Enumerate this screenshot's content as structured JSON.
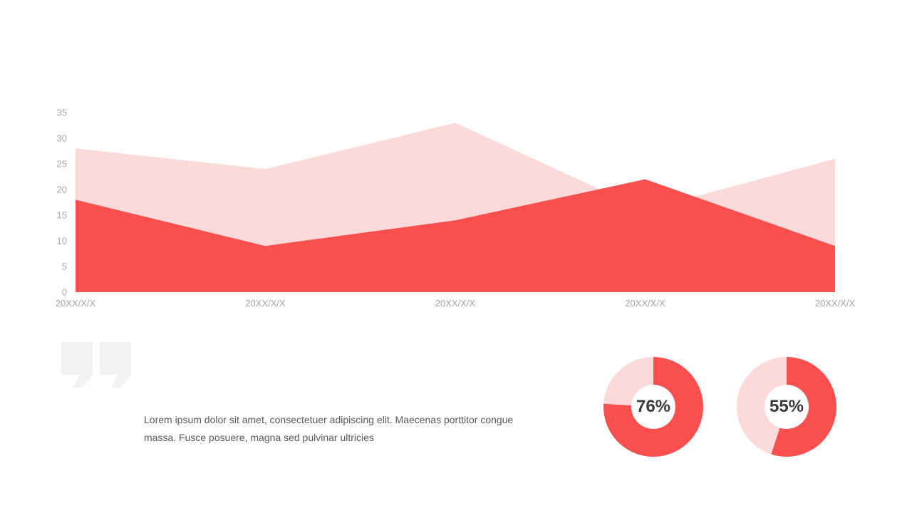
{
  "chart_data": [
    {
      "type": "area",
      "categories": [
        "20XX/X/X",
        "20XX/X/X",
        "20XX/X/X",
        "20XX/X/X",
        "20XX/X/X"
      ],
      "series": [
        {
          "values": [
            28,
            24,
            33,
            16,
            26
          ],
          "color": "#fcdada"
        },
        {
          "values": [
            18,
            9,
            14,
            22,
            9
          ],
          "color": "#f94f4f"
        }
      ],
      "ylim": [
        0,
        35
      ],
      "yticks": [
        0,
        5,
        10,
        15,
        20,
        25,
        30,
        35
      ],
      "grid": false,
      "legend": "none"
    },
    {
      "type": "pie",
      "style": "donut",
      "label": "76%",
      "values": [
        76,
        24
      ],
      "colors": [
        "#f94f4f",
        "#fcdada"
      ]
    },
    {
      "type": "pie",
      "style": "donut",
      "label": "55%",
      "values": [
        55,
        45
      ],
      "colors": [
        "#f94f4f",
        "#fcdada"
      ]
    }
  ],
  "quote": {
    "icon": "quote-mark-icon",
    "color": "#f2f2f2"
  },
  "body_text": {
    "line1": "Lorem ipsum dolor sit amet, consectetuer adipiscing elit. Maecenas porttitor congue",
    "line2": "massa. Fusce posuere, magna  sed pulvinar  ultricies"
  }
}
